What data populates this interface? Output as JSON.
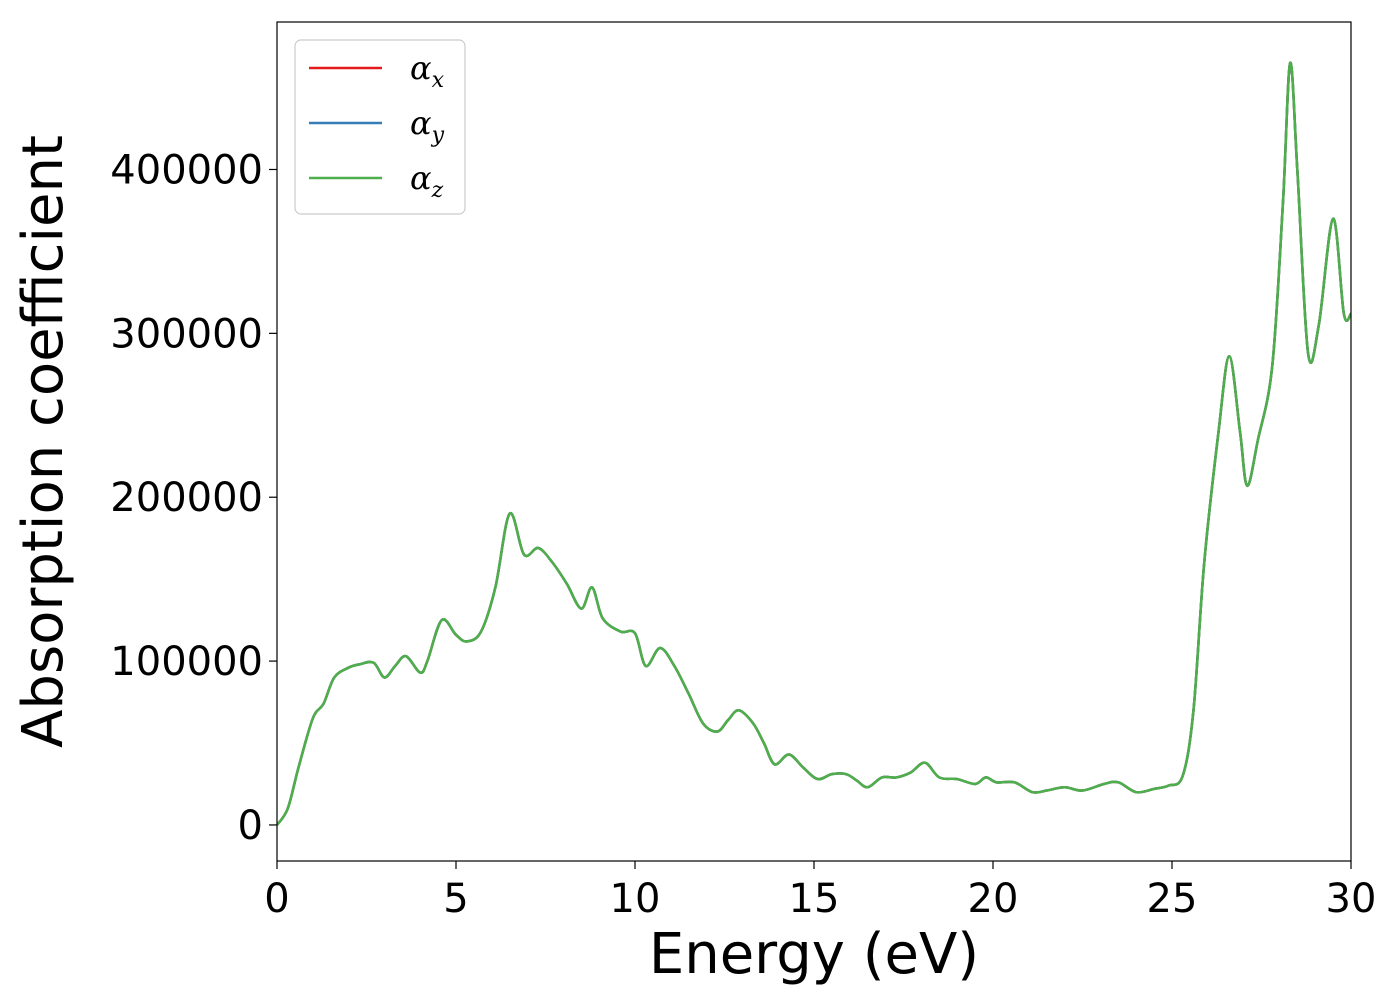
{
  "chart_data": {
    "type": "line",
    "title": "",
    "xlabel": "Energy (eV)",
    "ylabel": "Absorption coefficient",
    "xlim": [
      0,
      30
    ],
    "ylim": [
      -22000,
      490000
    ],
    "xticks": [
      0,
      5,
      10,
      15,
      20,
      25,
      30
    ],
    "yticks": [
      0,
      100000,
      200000,
      300000,
      400000
    ],
    "grid": false,
    "legend_position": "top-left",
    "series": [
      {
        "name": "αx",
        "symbol": "α",
        "subscript": "x",
        "color": "#e41a1c"
      },
      {
        "name": "αy",
        "symbol": "α",
        "subscript": "y",
        "color": "#377eb8"
      },
      {
        "name": "αz",
        "symbol": "α",
        "subscript": "z",
        "color": "#4daf4a"
      }
    ],
    "x": [
      0,
      0.3,
      0.6,
      1.0,
      1.3,
      1.6,
      2.0,
      2.3,
      2.7,
      3.0,
      3.3,
      3.6,
      4.0,
      4.2,
      4.6,
      5.0,
      5.3,
      5.7,
      6.1,
      6.5,
      6.9,
      7.3,
      7.7,
      8.1,
      8.5,
      8.8,
      9.1,
      9.6,
      10.0,
      10.3,
      10.7,
      11.1,
      11.5,
      11.9,
      12.3,
      12.6,
      12.9,
      13.3,
      13.6,
      13.9,
      14.3,
      14.7,
      15.1,
      15.5,
      15.9,
      16.2,
      16.5,
      16.9,
      17.3,
      17.7,
      18.1,
      18.5,
      19.0,
      19.5,
      19.8,
      20.1,
      20.6,
      21.1,
      21.5,
      22.0,
      22.5,
      23.1,
      23.5,
      24.0,
      24.5,
      24.9,
      25.3,
      25.6,
      25.9,
      26.3,
      26.6,
      26.9,
      27.1,
      27.4,
      27.8,
      28.1,
      28.3,
      28.5,
      28.8,
      29.1,
      29.5,
      29.8,
      30.0
    ],
    "values": [
      0,
      10000,
      35000,
      65000,
      74000,
      90000,
      96000,
      98000,
      99000,
      90000,
      97000,
      103000,
      93000,
      100000,
      125000,
      116000,
      112000,
      118000,
      145000,
      190000,
      165000,
      169000,
      160000,
      147000,
      132000,
      145000,
      126000,
      118000,
      117000,
      97000,
      108000,
      97000,
      80000,
      62000,
      57000,
      64000,
      70000,
      62000,
      50000,
      37000,
      43000,
      35000,
      28000,
      31000,
      31000,
      27000,
      23000,
      29000,
      29000,
      32000,
      38000,
      29000,
      28000,
      25000,
      29000,
      26000,
      26000,
      20000,
      21000,
      23000,
      21000,
      25000,
      26000,
      20000,
      22000,
      24000,
      30000,
      70000,
      160000,
      240000,
      286000,
      240000,
      207000,
      235000,
      280000,
      380000,
      465000,
      400000,
      288000,
      305000,
      370000,
      312000,
      312000
    ]
  }
}
